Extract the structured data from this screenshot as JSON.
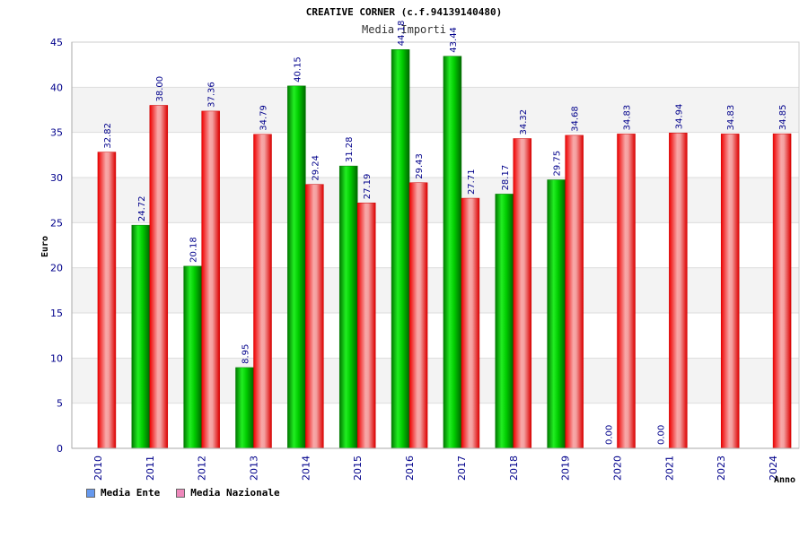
{
  "chart_data": {
    "type": "bar",
    "title": "CREATIVE CORNER (c.f.94139140480)",
    "subtitle": "Media Importi",
    "xlabel": "Anno",
    "ylabel": "Euro",
    "ylim": [
      0,
      45
    ],
    "yticks": [
      0,
      5,
      10,
      15,
      20,
      25,
      30,
      35,
      40,
      45
    ],
    "categories": [
      "2010",
      "2011",
      "2012",
      "2013",
      "2014",
      "2015",
      "2016",
      "2017",
      "2018",
      "2019",
      "2020",
      "2021",
      "2023",
      "2024"
    ],
    "series": [
      {
        "name": "Media Ente",
        "color": "#00cc00",
        "legend_color": "#6699ee",
        "values": [
          null,
          24.72,
          20.18,
          8.95,
          40.15,
          31.28,
          44.18,
          43.44,
          28.17,
          29.75,
          0.0,
          0.0,
          null,
          null
        ],
        "labels": [
          null,
          "24.72",
          "20.18",
          "8.95",
          "40.15",
          "31.28",
          "44.18",
          "43.44",
          "28.17",
          "29.75",
          "0.00",
          "0.00",
          null,
          null
        ]
      },
      {
        "name": "Media Nazionale",
        "color": "#ff2222",
        "legend_color": "#ee88bb",
        "values": [
          32.82,
          38.0,
          37.36,
          34.79,
          29.24,
          27.19,
          29.43,
          27.71,
          34.32,
          34.68,
          34.83,
          34.94,
          34.83,
          34.85
        ],
        "labels": [
          "32.82",
          "38.00",
          "37.36",
          "34.79",
          "29.24",
          "27.19",
          "29.43",
          "27.71",
          "34.32",
          "34.68",
          "34.83",
          "34.94",
          "34.83",
          "34.85"
        ]
      }
    ]
  }
}
